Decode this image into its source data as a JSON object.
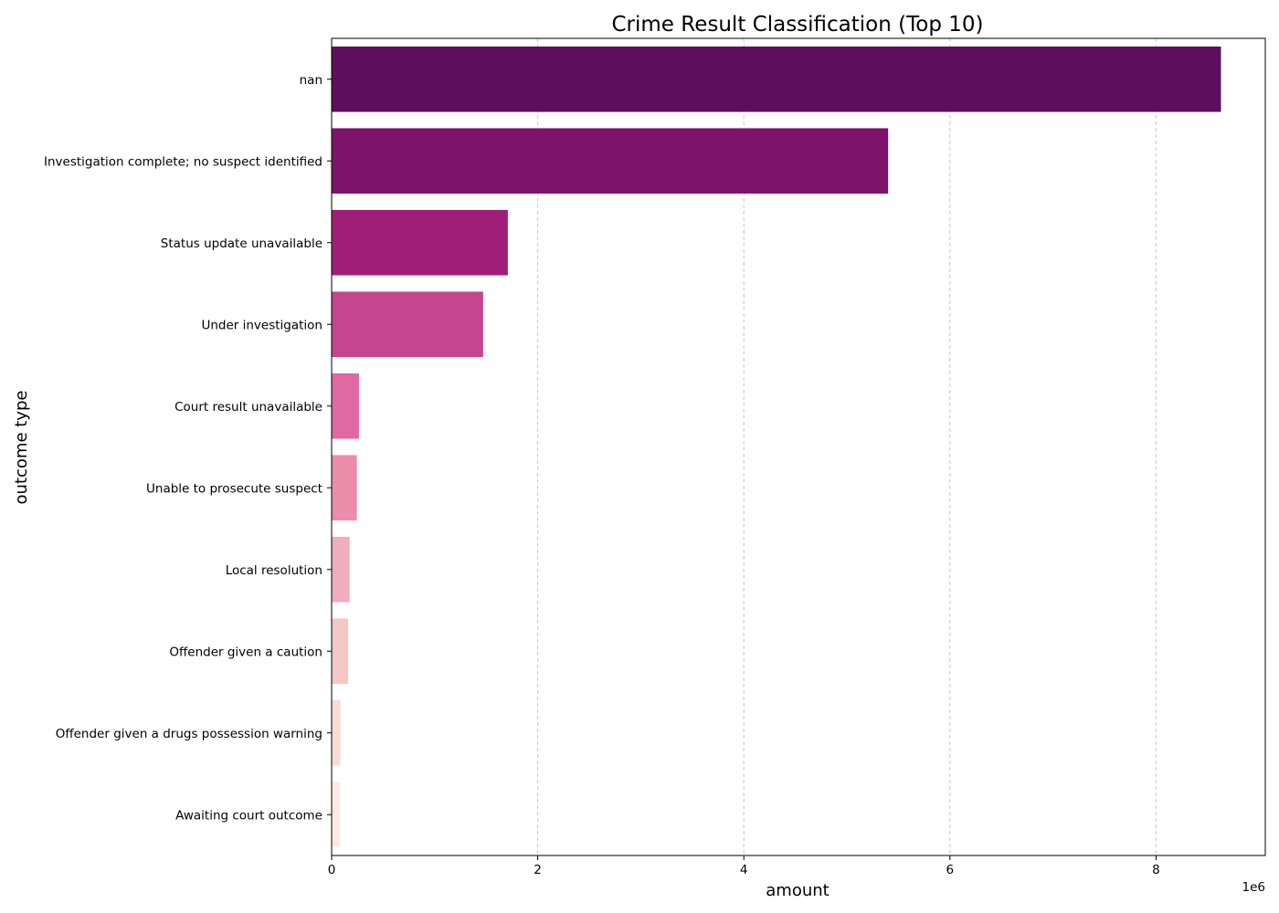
{
  "chart_data": {
    "type": "bar",
    "orientation": "horizontal",
    "title": "Crime Result Classification (Top 10)",
    "xlabel": "amount",
    "ylabel": "outcome type",
    "x_offset_label": "1e6",
    "xlim": [
      0,
      9060000
    ],
    "x_ticks": [
      0,
      2000000,
      4000000,
      6000000,
      8000000
    ],
    "x_tick_labels": [
      "0",
      "2",
      "4",
      "6",
      "8"
    ],
    "grid": "x-dashed",
    "categories": [
      "nan",
      "Investigation complete; no suspect identified",
      "Status update unavailable",
      "Under investigation",
      "Court result unavailable",
      "Unable to prosecute suspect",
      "Local resolution",
      "Offender given a caution",
      "Offender given a drugs possession warning",
      "Awaiting court outcome"
    ],
    "values": [
      8630000,
      5400000,
      1710000,
      1470000,
      265000,
      245000,
      175000,
      160000,
      85000,
      80000
    ],
    "colors": [
      "#5e0e5e",
      "#7e136b",
      "#a11e78",
      "#c5458e",
      "#df69a0",
      "#ea8dab",
      "#f0adbc",
      "#f4c6c4",
      "#f9dcd6",
      "#fbe9e6"
    ]
  }
}
